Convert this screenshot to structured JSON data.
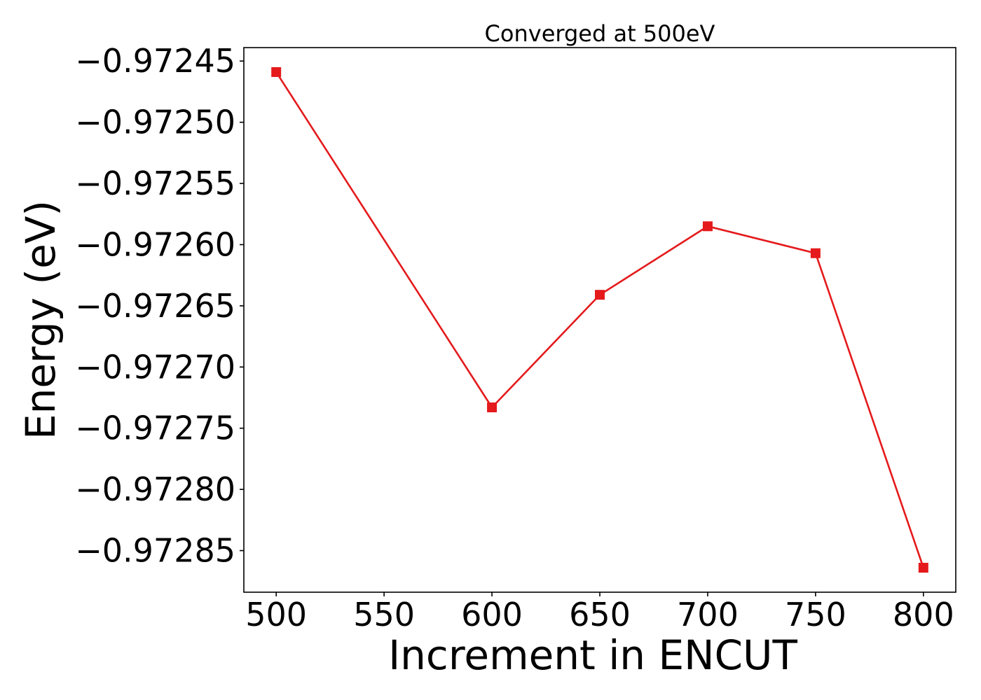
{
  "chart_data": {
    "type": "line",
    "title": "Converged at 500eV",
    "xlabel": "Increment in ENCUT",
    "ylabel": "Energy (eV)",
    "x": [
      500,
      600,
      650,
      700,
      750,
      800
    ],
    "series": [
      {
        "values": [
          -0.972459,
          -0.972733,
          -0.972641,
          -0.972585,
          -0.972607,
          -0.972864
        ],
        "color": "#e41a1c",
        "marker": "square"
      }
    ],
    "x_ticks": [
      500,
      550,
      600,
      650,
      700,
      750,
      800
    ],
    "x_tick_labels": [
      "500",
      "550",
      "600",
      "650",
      "700",
      "750",
      "800"
    ],
    "y_ticks": [
      -0.97245,
      -0.9725,
      -0.97255,
      -0.9726,
      -0.97265,
      -0.9727,
      -0.97275,
      -0.9728,
      -0.97285
    ],
    "y_tick_labels": [
      "−0.97245",
      "−0.97250",
      "−0.97255",
      "−0.97260",
      "−0.97265",
      "−0.97270",
      "−0.97275",
      "−0.97280",
      "−0.97285"
    ],
    "xlim": [
      485,
      815
    ],
    "ylim": [
      -0.972884,
      -0.972439
    ],
    "grid": false,
    "legend": "none"
  }
}
